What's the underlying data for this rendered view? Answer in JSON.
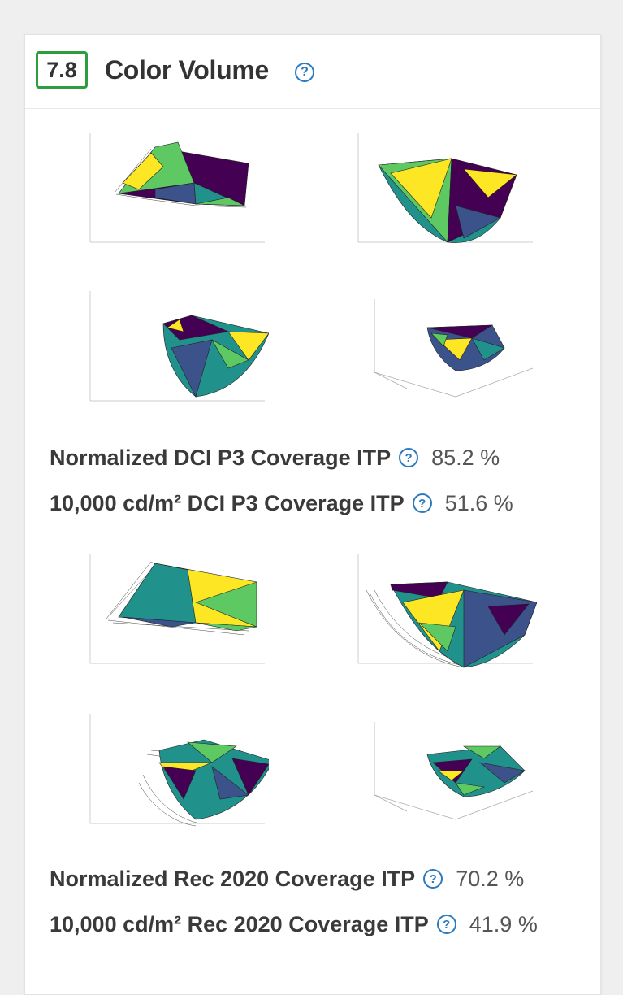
{
  "header": {
    "score": "7.8",
    "title": "Color Volume"
  },
  "sections": [
    {
      "metrics": [
        {
          "label": "Normalized DCI P3 Coverage ITP",
          "value": "85.2 %"
        },
        {
          "label": "10,000 cd/m² DCI P3 Coverage ITP",
          "value": "51.6 %"
        }
      ]
    },
    {
      "metrics": [
        {
          "label": "Normalized Rec 2020 Coverage ITP",
          "value": "70.2 %"
        },
        {
          "label": "10,000 cd/m² Rec 2020 Coverage ITP",
          "value": "41.9 %"
        }
      ]
    }
  ],
  "palette": {
    "accent_green": "#2e9d3f",
    "help_blue": "#2a7bbf",
    "viridis": [
      "#440154",
      "#3b528b",
      "#21918c",
      "#5ec962",
      "#fde725"
    ]
  }
}
